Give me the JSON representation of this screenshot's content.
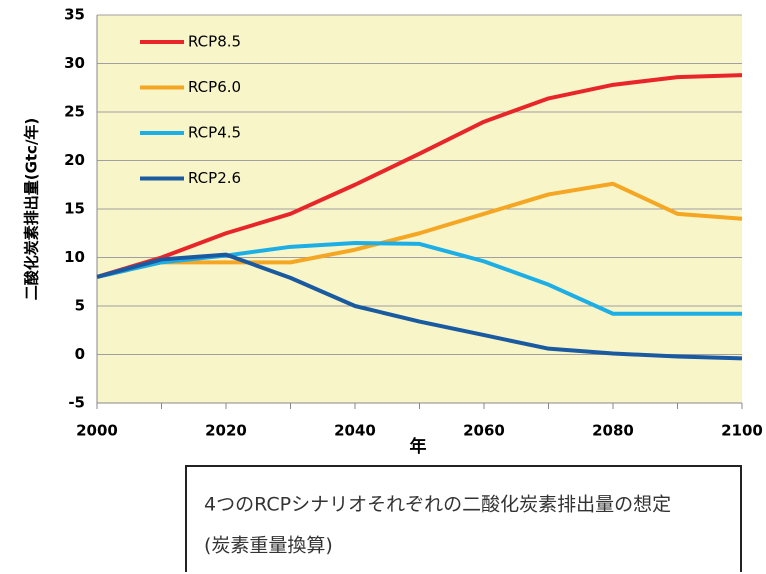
{
  "chart_data": {
    "type": "line",
    "ylabel": "二酸化炭素排出量(Gtc/年)",
    "xlabel": "年",
    "x": [
      2000,
      2010,
      2020,
      2030,
      2040,
      2050,
      2060,
      2070,
      2080,
      2090,
      2100
    ],
    "series": [
      {
        "name": "RCP8.5",
        "color": "#e8262a",
        "values": [
          8,
          10,
          12.5,
          14.5,
          17.5,
          20.7,
          24,
          26.4,
          27.8,
          28.6,
          28.8
        ]
      },
      {
        "name": "RCP6.0",
        "color": "#f5a623",
        "values": [
          8,
          9.5,
          9.5,
          9.5,
          10.8,
          12.5,
          14.5,
          16.5,
          17.6,
          14.5,
          14
        ]
      },
      {
        "name": "RCP4.5",
        "color": "#1eaee6",
        "values": [
          8,
          9.5,
          10.2,
          11.1,
          11.5,
          11.4,
          9.6,
          7.2,
          4.2,
          4.2,
          4.2
        ]
      },
      {
        "name": "RCP2.6",
        "color": "#1a5aa0",
        "values": [
          8,
          9.8,
          10.3,
          7.9,
          5,
          3.4,
          2,
          0.6,
          0.1,
          -0.2,
          -0.4
        ]
      }
    ],
    "xlim": [
      2000,
      2100
    ],
    "xticks": [
      2000,
      2020,
      2040,
      2060,
      2080,
      2100
    ],
    "ylim": [
      -5,
      35
    ],
    "yticks": [
      -5,
      0,
      5,
      10,
      15,
      20,
      25,
      30,
      35
    ],
    "grid": true,
    "legend": "upper left",
    "caption": [
      "4つのRCPシナリオそれぞれの二酸化炭素排出量の想定",
      "(炭素重量換算)"
    ]
  }
}
